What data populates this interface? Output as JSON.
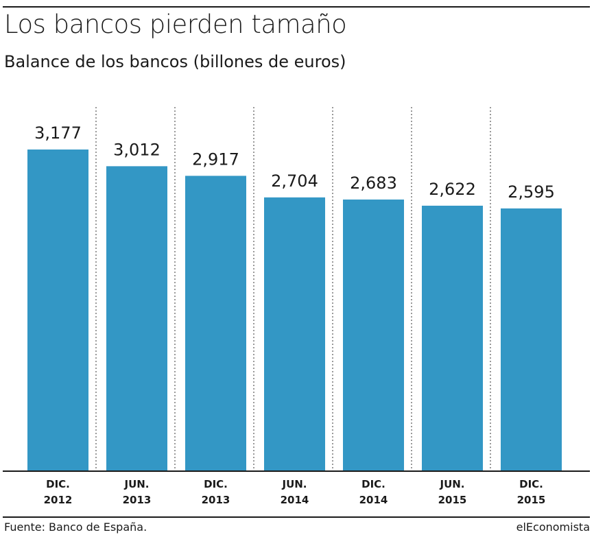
{
  "title": "Los bancos pierden tamaño",
  "subtitle": "Balance de los bancos (billones de euros)",
  "source": "Fuente: Banco de España.",
  "brand": "elEconomista",
  "colors": {
    "bar": "#3397c5",
    "text": "#1a1a1a",
    "divider": "#333333"
  },
  "chart_data": {
    "type": "bar",
    "categories": [
      [
        "DIC.",
        "2012"
      ],
      [
        "JUN.",
        "2013"
      ],
      [
        "DIC.",
        "2013"
      ],
      [
        "JUN.",
        "2014"
      ],
      [
        "DIC.",
        "2014"
      ],
      [
        "JUN.",
        "2015"
      ],
      [
        "DIC.",
        "2015"
      ]
    ],
    "values": [
      3.177,
      3.012,
      2.917,
      2.704,
      2.683,
      2.622,
      2.595
    ],
    "value_labels": [
      "3,177",
      "3,012",
      "2,917",
      "2,704",
      "2,683",
      "2,622",
      "2,595"
    ],
    "ylim": [
      0,
      3.177
    ],
    "grid": false,
    "dashed_separators": true
  }
}
